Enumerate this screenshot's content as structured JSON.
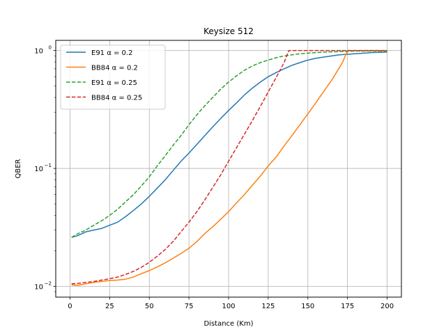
{
  "chart_data": {
    "type": "line",
    "title": "Keysize 512",
    "xlabel": "Distance (Km)",
    "ylabel": "QBER",
    "xlim": [
      -9,
      209
    ],
    "ylim": [
      0.0081,
      1.22
    ],
    "yscale": "log",
    "grid": true,
    "legend_position": "top-left",
    "x_ticks": [
      0,
      25,
      50,
      75,
      100,
      125,
      150,
      175,
      200
    ],
    "x_tick_labels": [
      "0",
      "25",
      "50",
      "75",
      "100",
      "125",
      "150",
      "175",
      "200"
    ],
    "y_ticks": [
      0.01,
      0.1,
      1
    ],
    "y_tick_labels": [
      {
        "base": "10",
        "exp": "−2"
      },
      {
        "base": "10",
        "exp": "−1"
      },
      {
        "base": "10",
        "exp": "0"
      }
    ],
    "series": [
      {
        "name": "E91 α = 0.2",
        "color": "#1f77b4",
        "dash": "solid",
        "x": [
          1,
          5,
          10,
          15,
          20,
          25,
          30,
          35,
          40,
          45,
          50,
          55,
          60,
          65,
          70,
          75,
          80,
          85,
          90,
          95,
          100,
          105,
          110,
          115,
          120,
          125,
          130,
          135,
          140,
          145,
          150,
          155,
          160,
          165,
          170,
          175,
          180,
          185,
          190,
          195,
          200
        ],
        "y": [
          0.026,
          0.027,
          0.029,
          0.03,
          0.031,
          0.033,
          0.035,
          0.039,
          0.044,
          0.05,
          0.058,
          0.068,
          0.08,
          0.096,
          0.115,
          0.135,
          0.16,
          0.19,
          0.225,
          0.265,
          0.31,
          0.36,
          0.42,
          0.48,
          0.54,
          0.6,
          0.65,
          0.7,
          0.75,
          0.79,
          0.83,
          0.86,
          0.88,
          0.9,
          0.92,
          0.93,
          0.94,
          0.95,
          0.96,
          0.965,
          0.97
        ]
      },
      {
        "name": "BB84 α = 0.2",
        "color": "#ff7f0e",
        "dash": "solid",
        "x": [
          1,
          5,
          10,
          15,
          20,
          25,
          30,
          35,
          40,
          45,
          50,
          55,
          60,
          65,
          70,
          75,
          80,
          85,
          90,
          95,
          100,
          105,
          110,
          115,
          120,
          125,
          130,
          135,
          140,
          145,
          150,
          155,
          160,
          165,
          170,
          172,
          175,
          180,
          185,
          190,
          195,
          200
        ],
        "y": [
          0.0103,
          0.0102,
          0.0105,
          0.0108,
          0.011,
          0.0112,
          0.0113,
          0.0115,
          0.012,
          0.0128,
          0.0136,
          0.0146,
          0.0158,
          0.0173,
          0.019,
          0.021,
          0.024,
          0.028,
          0.032,
          0.037,
          0.043,
          0.051,
          0.06,
          0.072,
          0.086,
          0.105,
          0.125,
          0.155,
          0.19,
          0.235,
          0.29,
          0.36,
          0.45,
          0.56,
          0.72,
          0.8,
          1.0,
          1.0,
          1.0,
          1.0,
          1.0,
          1.0
        ]
      },
      {
        "name": "E91 α = 0.25",
        "color": "#2ca02c",
        "dash": "dashed",
        "x": [
          1,
          5,
          10,
          15,
          20,
          25,
          30,
          35,
          40,
          45,
          50,
          55,
          60,
          65,
          70,
          75,
          80,
          85,
          90,
          95,
          100,
          105,
          110,
          115,
          120,
          125,
          130,
          135,
          140,
          145,
          150,
          155,
          160,
          165,
          170,
          175,
          180,
          185,
          190,
          195,
          200
        ],
        "y": [
          0.026,
          0.028,
          0.03,
          0.033,
          0.036,
          0.04,
          0.045,
          0.052,
          0.06,
          0.071,
          0.085,
          0.105,
          0.128,
          0.157,
          0.19,
          0.235,
          0.285,
          0.34,
          0.4,
          0.47,
          0.54,
          0.61,
          0.68,
          0.74,
          0.79,
          0.83,
          0.87,
          0.9,
          0.92,
          0.94,
          0.95,
          0.96,
          0.97,
          0.975,
          0.98,
          0.985,
          0.99,
          0.99,
          0.99,
          0.99,
          0.99
        ]
      },
      {
        "name": "BB84 α = 0.25",
        "color": "#d62728",
        "dash": "dashed",
        "x": [
          1,
          5,
          10,
          15,
          20,
          25,
          30,
          35,
          40,
          45,
          50,
          55,
          60,
          65,
          70,
          75,
          80,
          85,
          90,
          95,
          100,
          105,
          110,
          115,
          120,
          125,
          130,
          135,
          138,
          140,
          150,
          160,
          170,
          180,
          190,
          200
        ],
        "y": [
          0.0105,
          0.0106,
          0.0108,
          0.011,
          0.0113,
          0.0116,
          0.012,
          0.0126,
          0.0134,
          0.0145,
          0.016,
          0.018,
          0.0205,
          0.024,
          0.029,
          0.035,
          0.043,
          0.054,
          0.069,
          0.088,
          0.115,
          0.15,
          0.195,
          0.255,
          0.335,
          0.445,
          0.59,
          0.79,
          1.0,
          1.0,
          1.0,
          1.0,
          1.0,
          1.0,
          1.0,
          1.0
        ]
      }
    ]
  }
}
